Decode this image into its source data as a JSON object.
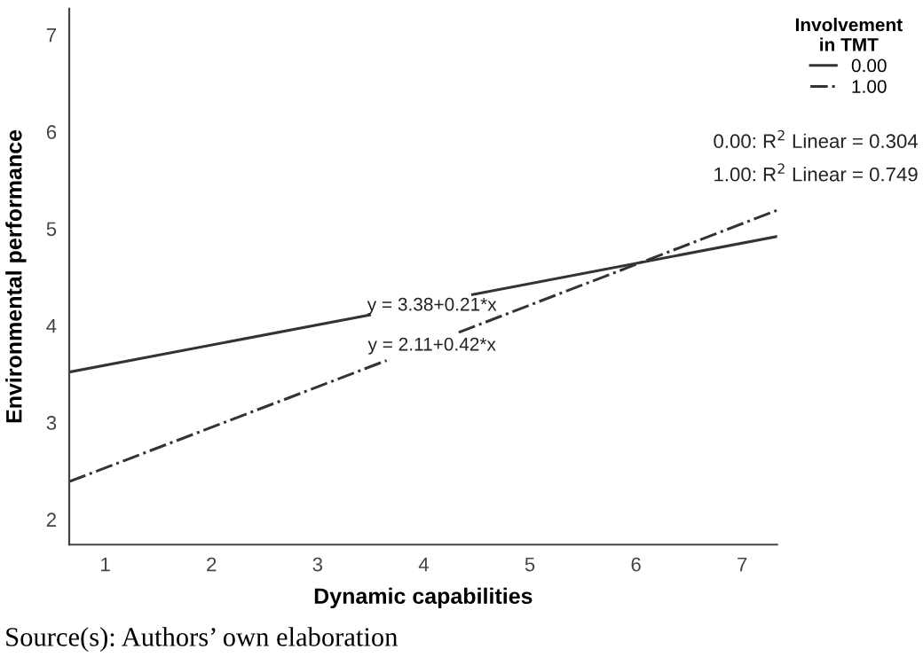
{
  "chart_data": {
    "type": "line",
    "xlabel": "Dynamic capabilities",
    "ylabel": "Environmental performance",
    "legend_title": "Involvement\nin TMT",
    "xlim": [
      0.66,
      7.33
    ],
    "ylim": [
      1.74,
      7.27
    ],
    "xticks": [
      1,
      2,
      3,
      4,
      5,
      6,
      7
    ],
    "yticks": [
      2,
      3,
      4,
      5,
      6,
      7
    ],
    "series": [
      {
        "name": "0.00",
        "color": "#333333",
        "line_style": "solid",
        "x": [
          0.66,
          3.49,
          3.5,
          4.46,
          7.33
        ],
        "values": [
          3.52,
          4.11,
          null,
          4.32,
          4.92
        ]
      },
      {
        "name": "1.00",
        "color": "#333333",
        "line_style": "dashdot",
        "x": [
          0.66,
          3.65,
          3.7,
          4.33,
          7.33
        ],
        "values": [
          2.39,
          3.64,
          null,
          3.93,
          5.19
        ]
      }
    ],
    "annotations": [
      "y = 3.38+0.21*x",
      "y = 2.11+0.42*x",
      "0.00: R$^{2}$ Linear = 0.304",
      "1.00: R$^{2}$ Linear = 0.749",
      "Source(s): Authors’ own elaboration"
    ],
    "legend": "top right",
    "grid": false
  }
}
